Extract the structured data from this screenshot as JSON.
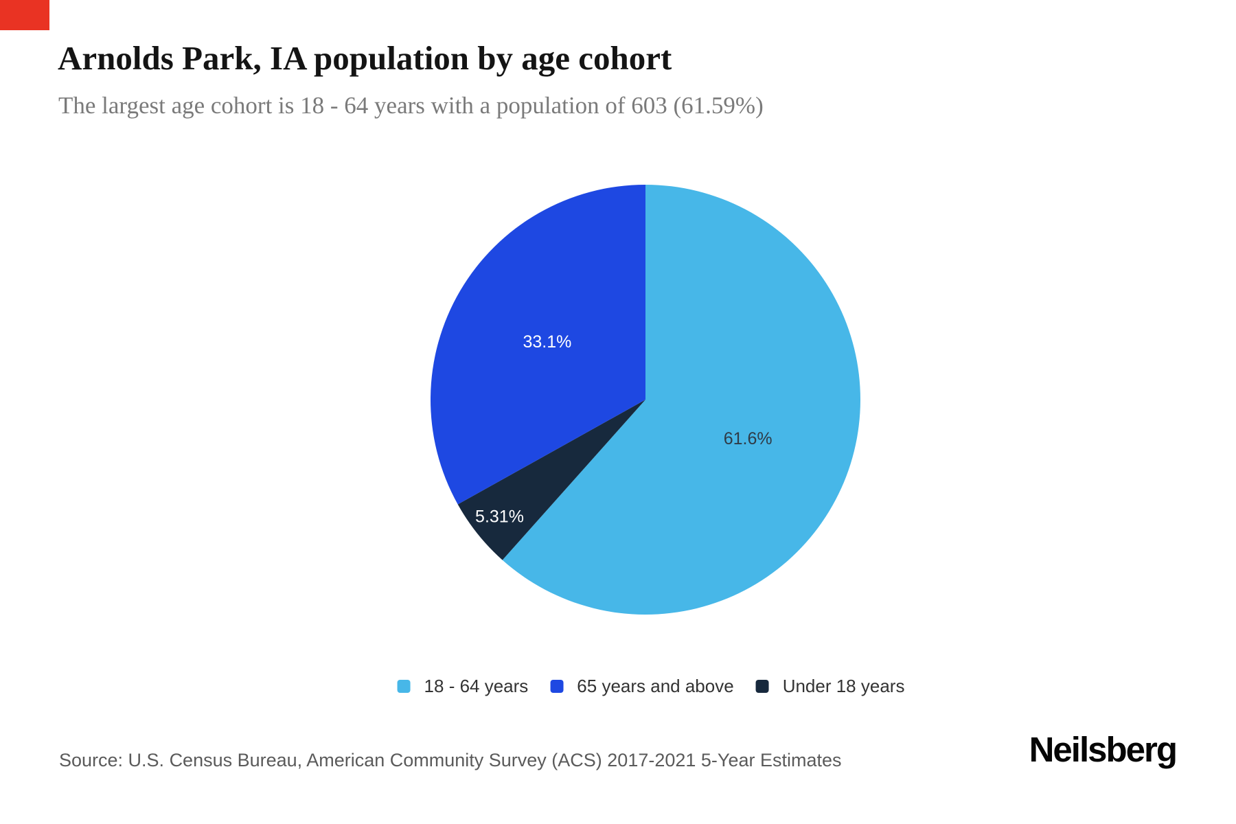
{
  "annotation_marker": {
    "color": "#e93323"
  },
  "chart_data": {
    "type": "pie",
    "title": "Arnolds Park, IA population by age cohort",
    "subtitle": "The largest age cohort is 18 - 64 years with a population of 603 (61.59%)",
    "unit": "%",
    "slice_order": "clockwise from 12 o'clock",
    "slices": [
      {
        "name": "18 - 64 years",
        "value": 61.59,
        "display_label": "61.6%",
        "color": "#47b7e8",
        "label_color": "#2f3b47"
      },
      {
        "name": "Under 18 years",
        "value": 5.31,
        "display_label": "5.31%",
        "color": "#17293d",
        "label_color": "#ffffff"
      },
      {
        "name": "65 years and above",
        "value": 33.1,
        "display_label": "33.1%",
        "color": "#1e48e2",
        "label_color": "#ffffff"
      }
    ],
    "legend": [
      "18 - 64 years",
      "65 years and above",
      "Under 18 years"
    ],
    "legend_position": "bottom-center"
  },
  "footer": {
    "source": "Source: U.S. Census Bureau, American Community Survey (ACS) 2017-2021 5-Year Estimates",
    "brand": "Neilsberg"
  }
}
